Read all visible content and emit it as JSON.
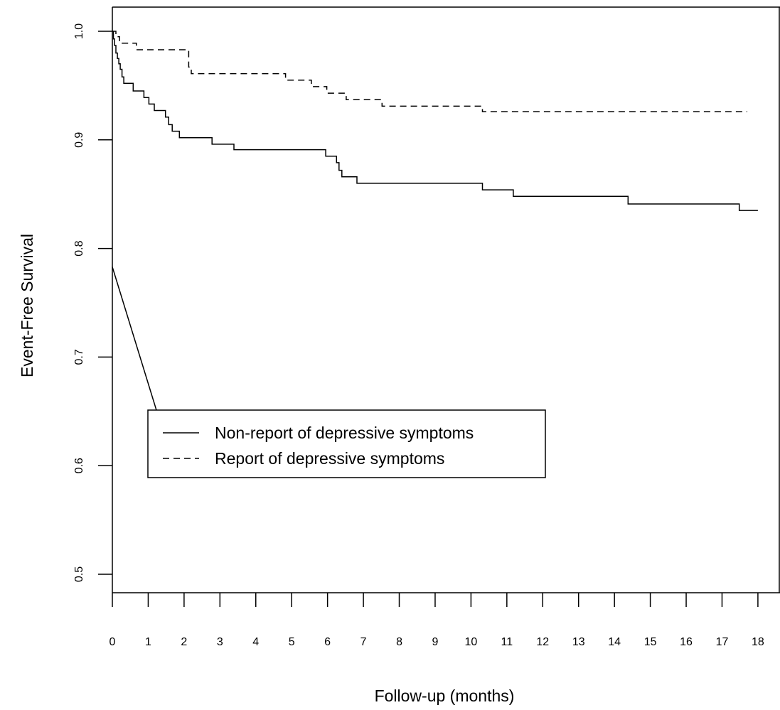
{
  "chart_data": {
    "type": "line",
    "title": "",
    "xlabel": "Follow-up (months)",
    "ylabel": "Event-Free Survival",
    "xlim": [
      0,
      18
    ],
    "ylim": [
      0.48,
      1.02
    ],
    "x_ticks": [
      "0",
      "1",
      "2",
      "3",
      "4",
      "5",
      "6",
      "7",
      "8",
      "9",
      "10",
      "11",
      "12",
      "13",
      "14",
      "15",
      "16",
      "17",
      "18"
    ],
    "y_ticks": [
      "0.5",
      "0.6",
      "0.7",
      "0.8",
      "0.9",
      "1.0"
    ],
    "grid": false,
    "legend_position": "center-left",
    "series": [
      {
        "name": "Non-report of depressive symptoms",
        "line_style": "solid",
        "x": [
          0,
          0.03,
          0.06,
          0.1,
          0.14,
          0.18,
          0.22,
          0.27,
          0.32,
          0.58,
          0.88,
          1.02,
          1.17,
          1.48,
          1.57,
          1.67,
          1.87,
          2.78,
          3.39,
          4.52,
          5.95,
          6.25,
          6.32,
          6.4,
          6.53,
          6.82,
          7.49,
          10.32,
          11.18,
          14.3,
          14.38,
          17.48,
          18.0
        ],
        "y": [
          1.0,
          0.993,
          0.987,
          0.98,
          0.975,
          0.97,
          0.965,
          0.958,
          0.952,
          0.945,
          0.939,
          0.933,
          0.927,
          0.921,
          0.914,
          0.908,
          0.902,
          0.896,
          0.891,
          0.891,
          0.885,
          0.879,
          0.872,
          0.866,
          0.866,
          0.86,
          0.86,
          0.854,
          0.848,
          0.848,
          0.841,
          0.835,
          0.835
        ]
      },
      {
        "name": "Report of depressive symptoms",
        "line_style": "dashed",
        "x": [
          0,
          0.1,
          0.2,
          0.67,
          2.13,
          2.2,
          4.83,
          5.48,
          5.55,
          5.98,
          6.52,
          7.52,
          10.3,
          10.32,
          17.7
        ],
        "y": [
          1.0,
          0.995,
          0.989,
          0.983,
          0.967,
          0.961,
          0.955,
          0.955,
          0.949,
          0.943,
          0.937,
          0.931,
          0.931,
          0.926,
          0.926
        ]
      }
    ],
    "annotations": [
      {
        "type": "line",
        "from": [
          0.0,
          0.783
        ],
        "to": [
          1.63,
          0.608
        ]
      }
    ]
  }
}
